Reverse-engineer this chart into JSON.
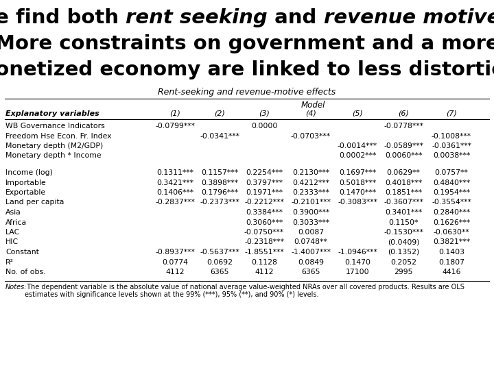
{
  "title_parts": [
    {
      "text": "We find both ",
      "italic": false
    },
    {
      "text": "rent seeking",
      "italic": true
    },
    {
      "text": " and ",
      "italic": false
    },
    {
      "text": "revenue motives",
      "italic": true
    },
    {
      "text": ":",
      "italic": false
    }
  ],
  "title_line2": "More constraints on government and a more",
  "title_line3": "monetized economy are linked to less distortion",
  "subtitle": "Rent-seeking and revenue-motive effects",
  "col_headers": [
    "Explanatory variables",
    "(1)",
    "(2)",
    "(3)",
    "(4)",
    "(5)",
    "(6)",
    "(7)"
  ],
  "rows": [
    [
      "WB Governance Indicators",
      "-0.0799***",
      "",
      "0.0000",
      "",
      "",
      "-0.0778***",
      ""
    ],
    [
      "Freedom Hse Econ. Fr. Index",
      "",
      "-0.0341***",
      "",
      "-0.0703***",
      "",
      "",
      "-0.1008***"
    ],
    [
      "Monetary depth (M2/GDP)",
      "",
      "",
      "",
      "",
      "-0.0014***",
      "-0.0589***",
      "-0.0361***"
    ],
    [
      "Monetary depth * Income",
      "",
      "",
      "",
      "",
      "0.0002***",
      "0.0060***",
      "0.0038***"
    ],
    [
      "",
      "",
      "",
      "",
      "",
      "",
      "",
      ""
    ],
    [
      "Income (log)",
      "0.1311***",
      "0.1157***",
      "0.2254***",
      "0.2130***",
      "0.1697***",
      "0.0629**",
      "0.0757**"
    ],
    [
      "Importable",
      "0.3421***",
      "0.3898***",
      "0.3797***",
      "0.4212***",
      "0.5018***",
      "0.4018***",
      "0.4840***"
    ],
    [
      "Exportable",
      "0.1406***",
      "0.1796***",
      "0.1971***",
      "0.2333***",
      "0.1470***",
      "0.1851***",
      "0.1954***"
    ],
    [
      "Land per capita",
      "-0.2837***",
      "-0.2373***",
      "-0.2212***",
      "-0.2101***",
      "-0.3083***",
      "-0.3607***",
      "-0.3554***"
    ],
    [
      "Asia",
      "",
      "",
      "0.3384***",
      "0.3900***",
      "",
      "0.3401***",
      "0.2840***"
    ],
    [
      "Africa",
      "",
      "",
      "0.3060***",
      "0.3033***",
      "",
      "0.1150*",
      "0.1626***"
    ],
    [
      "LAC",
      "",
      "",
      "-0.0750***",
      "0.0087",
      "",
      "-0.1530***",
      "-0.0630**"
    ],
    [
      "HIC",
      "",
      "",
      "-0.2318***",
      "0.0748**",
      "",
      "(0.0409)",
      "0.3821***"
    ],
    [
      "Constant",
      "-0.8937***",
      "-0.5637***",
      "-1.8551***",
      "-1.4007***",
      "-1.0946***",
      "(0.1352)",
      "0.1403"
    ],
    [
      "R²",
      "0.0774",
      "0.0692",
      "0.1128",
      "0.0849",
      "0.1470",
      "0.2052",
      "0.1807"
    ],
    [
      "No. of obs.",
      "4112",
      "6365",
      "4112",
      "6365",
      "17100",
      "2995",
      "4416"
    ]
  ],
  "notes_italic": "Notes:",
  "notes_rest": " The dependent variable is the absolute value of national average value-weighted NRAs over all covered products. Results are OLS\nestimates with significance levels shown at the 99% (***), 95% (**), and 90% (*) levels.",
  "bg_color": "#ffffff"
}
